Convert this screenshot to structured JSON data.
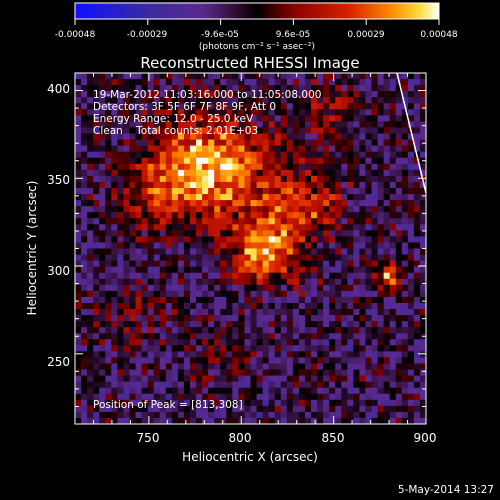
{
  "chart_data": {
    "type": "heatmap",
    "title": "Reconstructed RHESSI Image",
    "xlabel": "Heliocentric X (arcsec)",
    "ylabel": "Heliocentric Y (arcsec)",
    "xlim": [
      710,
      900
    ],
    "ylim": [
      210,
      410
    ],
    "x_ticks": [
      "750",
      "800",
      "850",
      "900"
    ],
    "y_ticks": [
      "250",
      "300",
      "350",
      "400"
    ],
    "colorbar": {
      "range": [
        -0.00048,
        0.00048
      ],
      "tick_labels": [
        "-0.00048",
        "-0.00029",
        "-9.6e-05",
        "9.6e-05",
        "0.00029",
        "0.00048"
      ],
      "unit_label": "(photons cm⁻² s⁻¹ asec⁻²)",
      "colors": [
        "#1010ff",
        "#3a2aa0",
        "#5a2a90",
        "#2a0a2a",
        "#000000",
        "#8a0000",
        "#d82000",
        "#ff8a00",
        "#ffe040",
        "#ffffff"
      ]
    },
    "annotations": {
      "time_range": "19-Mar-2012 11:03:16.000 to 11:05:08.000",
      "detectors": "Detectors: 3F 5F 6F 7F 8F 9F, Att 0",
      "energy_range": "Energy Range: 12.0 - 25.0 keV",
      "method_counts": "Clean    Total counts: 2.01E+03",
      "peak": "Position of Peak = [813,308]"
    },
    "peak_position": [
      813,
      308
    ],
    "grid": false
  },
  "footer": {
    "date": "5-May-2014 13:27"
  }
}
